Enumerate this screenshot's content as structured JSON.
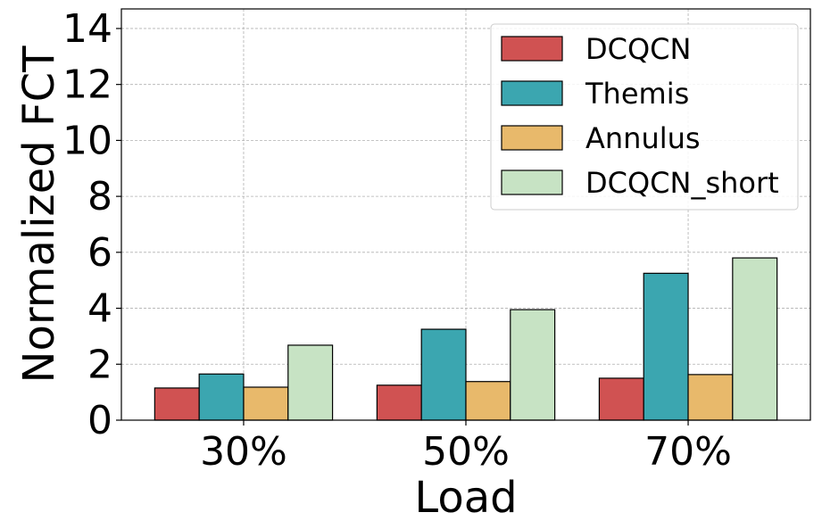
{
  "chart_data": {
    "type": "bar",
    "categories": [
      "30%",
      "50%",
      "70%"
    ],
    "series": [
      {
        "name": "DCQCN",
        "color": "#d05252",
        "values": [
          1.15,
          1.25,
          1.5
        ]
      },
      {
        "name": "Themis",
        "color": "#3ba6b0",
        "values": [
          1.65,
          3.25,
          5.25
        ]
      },
      {
        "name": "Annulus",
        "color": "#e8b96b",
        "values": [
          1.18,
          1.38,
          1.63
        ]
      },
      {
        "name": "DCQCN_short",
        "color": "#c7e3c4",
        "values": [
          2.68,
          3.95,
          5.8
        ]
      }
    ],
    "xlabel": "Load",
    "ylabel": "Normalized FCT",
    "ylim": [
      0,
      14.7
    ],
    "yticks": [
      "0",
      "2",
      "4",
      "6",
      "8",
      "10",
      "12",
      "14"
    ],
    "grid": true,
    "legend_position": "top-right"
  }
}
